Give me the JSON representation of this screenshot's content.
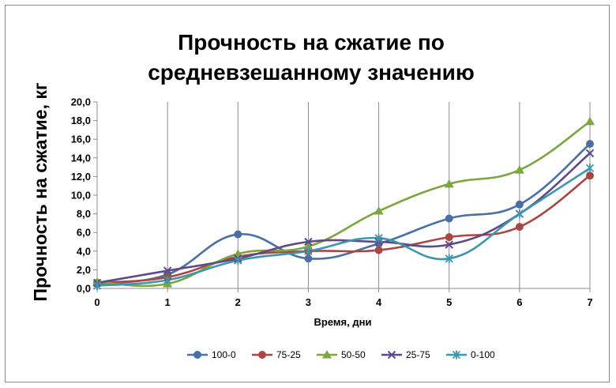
{
  "chart_data": {
    "type": "line",
    "title": [
      "Прочность на сжатие по",
      "средневзешанному значению"
    ],
    "xlabel": "Время, дни",
    "ylabel": "Прочность на сжатие, кг",
    "x": [
      0,
      1,
      2,
      3,
      4,
      5,
      6,
      7
    ],
    "x_tick_labels": [
      "0",
      "1",
      "2",
      "3",
      "4",
      "5",
      "6",
      "7"
    ],
    "xlim": [
      0,
      7
    ],
    "ylim": [
      0,
      20
    ],
    "y_ticks": [
      0,
      2,
      4,
      6,
      8,
      10,
      12,
      14,
      16,
      18,
      20
    ],
    "y_tick_labels": [
      "0,0",
      "2,0",
      "4,0",
      "6,0",
      "8,0",
      "10,0",
      "12,0",
      "14,0",
      "16,0",
      "18,0",
      "20,0"
    ],
    "grid": "vertical",
    "legend": "bottom",
    "series": [
      {
        "name": "100-0",
        "color": "#4a6fa5",
        "marker": "circle",
        "values": [
          0.5,
          1.5,
          5.8,
          3.2,
          4.8,
          7.5,
          9.0,
          15.5
        ]
      },
      {
        "name": "75-25",
        "color": "#aa4643",
        "marker": "circle",
        "values": [
          0.6,
          1.2,
          3.4,
          4.0,
          4.1,
          5.5,
          6.6,
          12.1
        ]
      },
      {
        "name": "50-50",
        "color": "#7da540",
        "marker": "triangle",
        "values": [
          0.7,
          0.5,
          3.7,
          4.5,
          8.3,
          11.2,
          12.7,
          17.9
        ]
      },
      {
        "name": "25-75",
        "color": "#5e4a85",
        "marker": "x",
        "values": [
          0.6,
          1.9,
          3.2,
          5.0,
          5.0,
          4.7,
          8.0,
          14.5
        ]
      },
      {
        "name": "0-100",
        "color": "#3d96ae",
        "marker": "star",
        "values": [
          0.3,
          0.9,
          3.0,
          4.0,
          5.4,
          3.2,
          8.0,
          12.9
        ]
      }
    ]
  }
}
